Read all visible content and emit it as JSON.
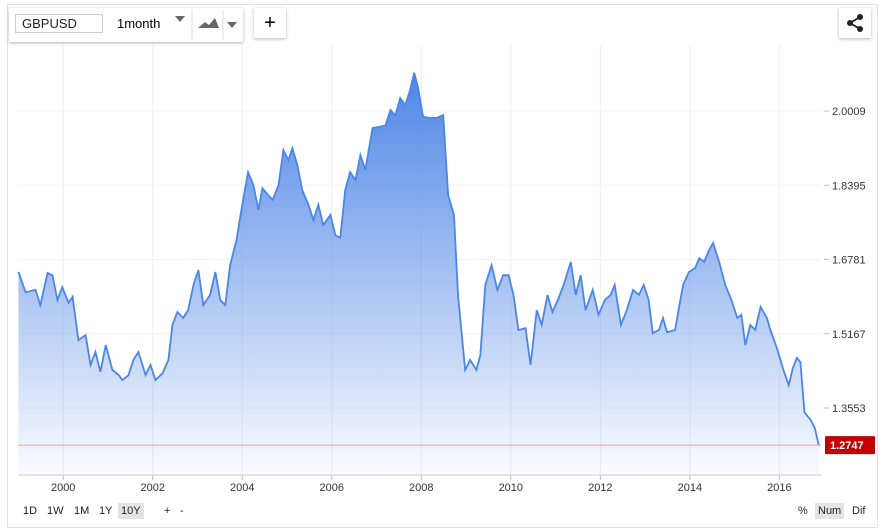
{
  "toolbar": {
    "symbol": "GBPUSD",
    "interval": "1month",
    "add": "+"
  },
  "ranges": [
    "1D",
    "1W",
    "1M",
    "1Y",
    "10Y"
  ],
  "zoom": [
    "+",
    "-"
  ],
  "modes": [
    "%",
    "Num",
    "Dif"
  ],
  "chart_data": {
    "type": "area",
    "color": "#4a86e8",
    "grid": true,
    "xlim": [
      1998.99,
      2016.93
    ],
    "xticks": [
      2000,
      2002,
      2004,
      2006,
      2008,
      2010,
      2012,
      2014,
      2016
    ],
    "ylim": [
      1.2097,
      2.1444
    ],
    "yticks": [
      1.3553,
      1.5167,
      1.6781,
      1.8395,
      2.0009
    ],
    "x": [
      1999.0,
      1999.16,
      1999.38,
      1999.49,
      1999.65,
      1999.76,
      1999.87,
      1999.98,
      2000.12,
      2000.21,
      2000.34,
      2000.5,
      2000.61,
      2000.72,
      2000.83,
      2000.95,
      2001.1,
      2001.24,
      2001.32,
      2001.46,
      2001.57,
      2001.68,
      2001.84,
      2001.95,
      2002.06,
      2002.22,
      2002.35,
      2002.44,
      2002.55,
      2002.68,
      2002.79,
      2002.91,
      2003.02,
      2003.13,
      2003.28,
      2003.4,
      2003.51,
      2003.62,
      2003.73,
      2003.87,
      2004.0,
      2004.13,
      2004.25,
      2004.36,
      2004.45,
      2004.58,
      2004.68,
      2004.81,
      2004.92,
      2005.03,
      2005.12,
      2005.23,
      2005.34,
      2005.48,
      2005.59,
      2005.7,
      2005.81,
      2005.97,
      2006.08,
      2006.19,
      2006.3,
      2006.41,
      2006.53,
      2006.64,
      2006.75,
      2006.91,
      2007.04,
      2007.2,
      2007.31,
      2007.42,
      2007.53,
      2007.64,
      2007.75,
      2007.84,
      2007.93,
      2008.04,
      2008.2,
      2008.35,
      2008.49,
      2008.6,
      2008.73,
      2008.82,
      2008.98,
      2009.09,
      2009.23,
      2009.32,
      2009.43,
      2009.57,
      2009.7,
      2009.83,
      2009.95,
      2010.06,
      2010.17,
      2010.33,
      2010.44,
      2010.58,
      2010.69,
      2010.82,
      2010.93,
      2011.05,
      2011.18,
      2011.34,
      2011.45,
      2011.56,
      2011.67,
      2011.83,
      2011.96,
      2012.1,
      2012.23,
      2012.32,
      2012.46,
      2012.59,
      2012.73,
      2012.86,
      2012.97,
      2013.08,
      2013.17,
      2013.31,
      2013.4,
      2013.49,
      2013.67,
      2013.76,
      2013.85,
      2013.98,
      2014.12,
      2014.21,
      2014.32,
      2014.43,
      2014.52,
      2014.66,
      2014.79,
      2014.93,
      2015.06,
      2015.15,
      2015.24,
      2015.35,
      2015.46,
      2015.58,
      2015.72,
      2015.8,
      2015.96,
      2016.09,
      2016.21,
      2016.3,
      2016.39,
      2016.47,
      2016.56,
      2016.7,
      2016.79,
      2016.88
    ],
    "values": [
      1.651,
      1.607,
      1.612,
      1.579,
      1.649,
      1.644,
      1.59,
      1.618,
      1.584,
      1.597,
      1.503,
      1.514,
      1.449,
      1.477,
      1.434,
      1.492,
      1.438,
      1.427,
      1.416,
      1.427,
      1.46,
      1.477,
      1.427,
      1.449,
      1.416,
      1.431,
      1.46,
      1.536,
      1.564,
      1.551,
      1.568,
      1.623,
      1.655,
      1.579,
      1.601,
      1.651,
      1.59,
      1.579,
      1.666,
      1.72,
      1.797,
      1.868,
      1.84,
      1.786,
      1.833,
      1.818,
      1.808,
      1.84,
      1.916,
      1.894,
      1.92,
      1.884,
      1.829,
      1.797,
      1.764,
      1.797,
      1.753,
      1.775,
      1.731,
      1.725,
      1.829,
      1.868,
      1.851,
      1.905,
      1.873,
      1.964,
      1.966,
      1.97,
      2.003,
      1.992,
      2.029,
      2.014,
      2.046,
      2.084,
      2.051,
      1.988,
      1.986,
      1.986,
      1.992,
      1.818,
      1.775,
      1.601,
      1.438,
      1.46,
      1.438,
      1.471,
      1.623,
      1.666,
      1.612,
      1.644,
      1.644,
      1.601,
      1.525,
      1.529,
      1.449,
      1.568,
      1.536,
      1.601,
      1.564,
      1.59,
      1.623,
      1.673,
      1.601,
      1.644,
      1.568,
      1.612,
      1.558,
      1.59,
      1.601,
      1.623,
      1.536,
      1.568,
      1.612,
      1.601,
      1.623,
      1.59,
      1.518,
      1.525,
      1.551,
      1.52,
      1.525,
      1.575,
      1.623,
      1.651,
      1.66,
      1.681,
      1.673,
      1.699,
      1.714,
      1.671,
      1.623,
      1.59,
      1.551,
      1.558,
      1.492,
      1.536,
      1.525,
      1.575,
      1.551,
      1.525,
      1.481,
      1.438,
      1.405,
      1.442,
      1.464,
      1.455,
      1.346,
      1.329,
      1.312,
      1.2747
    ]
  }
}
